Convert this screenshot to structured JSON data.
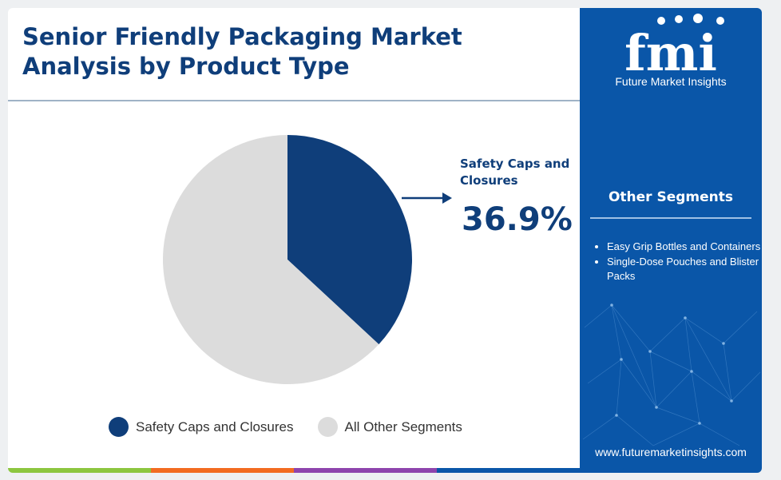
{
  "title": "Senior Friendly Packaging Market Analysis by Product Type",
  "chart_data": {
    "type": "pie",
    "slices": [
      {
        "label": "Safety Caps and Closures",
        "value": 36.9,
        "color": "#0f3e7a"
      },
      {
        "label": "All Other Segments",
        "value": 63.1,
        "color": "#dcdcdc"
      }
    ],
    "callout": {
      "label": "Safety Caps and Closures",
      "value_text": "36.9%"
    },
    "legend_position": "bottom"
  },
  "sidebar": {
    "brand": "fmi",
    "brand_name": "Future Market Insights",
    "other_segments_title": "Other Segments",
    "other_segments": [
      "Easy Grip Bottles and Containers",
      "Single-Dose Pouches and Blister Packs"
    ],
    "website": "www.futuremarketinsights.com"
  },
  "colors": {
    "accent": "#0f3e7a",
    "sidebar_bg": "#0a56a8",
    "bottom_bar": [
      "#8cc63f",
      "#f26b21",
      "#8e44ad",
      "#0a56a8"
    ]
  }
}
